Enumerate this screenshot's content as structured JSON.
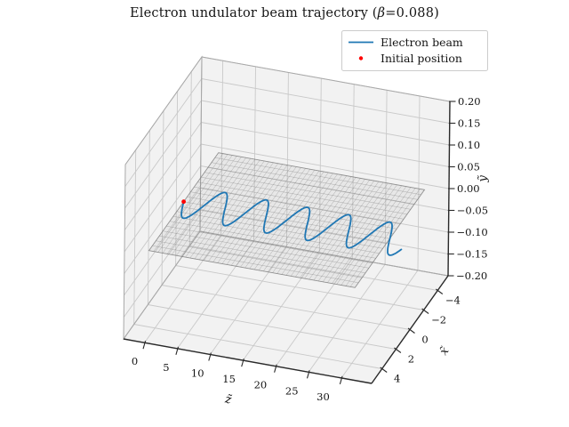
{
  "figure": {
    "title": {
      "pre": "Electron undulator beam trajectory (",
      "beta_symbol": "β",
      "post": "=0.088)"
    },
    "background": "#ffffff"
  },
  "chart_data": {
    "type": "line",
    "projection": "3d",
    "title": "Electron undulator beam trajectory (β=0.088)",
    "beta": 0.088,
    "view": {
      "elev_deg": 28,
      "azim_deg": -73
    },
    "axes": {
      "z_axis": {
        "label": "z̃",
        "lim": [
          -3.2,
          34.6
        ],
        "tick_values": [
          0,
          5,
          10,
          15,
          20,
          25,
          30
        ],
        "tick_labels": [
          "0",
          "5",
          "10",
          "15",
          "20",
          "25",
          "30"
        ]
      },
      "x_axis": {
        "label": "x̃",
        "lim": [
          5.5,
          -5.5
        ],
        "tick_values": [
          4,
          2,
          0,
          -2,
          -4
        ],
        "tick_labels": [
          "4",
          "2",
          "0",
          "−2",
          "−4"
        ]
      },
      "y_axis": {
        "label": "ỹ",
        "lim": [
          -0.2,
          0.2
        ],
        "tick_values": [
          -0.2,
          -0.15,
          -0.1,
          -0.05,
          0.0,
          0.05,
          0.1,
          0.15,
          0.2
        ],
        "tick_labels": [
          "−0.20",
          "−0.15",
          "−0.10",
          "−0.05",
          "0.00",
          "0.05",
          "0.10",
          "0.15",
          "0.20"
        ]
      }
    },
    "series": [
      {
        "name": "Electron beam",
        "type": "line",
        "color": "#1f77b4",
        "line_width": 1.8,
        "model": "x = A*sin(2*pi*z/period), y = 0",
        "amplitude": 1.5,
        "period": 6.2832,
        "z_range": [
          0,
          34
        ],
        "samples": 700
      },
      {
        "name": "Initial position",
        "type": "scatter",
        "color": "#ff0000",
        "marker": "dot",
        "points": [
          {
            "z": 0,
            "x": 0,
            "y": 0
          }
        ]
      }
    ],
    "reference_plane": {
      "description": "undulator mid-plane mesh at y = 0",
      "z_range": [
        0,
        31.4
      ],
      "x_range": [
        -5,
        5
      ],
      "mesh_lines_across_z": 46,
      "mesh_lines_across_x": 21,
      "color": "#7a7a7a"
    },
    "legend": {
      "position": "upper right",
      "entries": [
        {
          "label": "Electron beam",
          "marker": "line",
          "color": "#1f77b4"
        },
        {
          "label": "Initial position",
          "marker": "dot",
          "color": "#ff0000"
        }
      ]
    },
    "style_colors": {
      "pane_fill": "#f2f2f2",
      "pane_edge": "#a8a8a8",
      "grid_line": "#c9c9c9",
      "axis_spine": "#2a2a2a",
      "text": "#141414"
    }
  }
}
